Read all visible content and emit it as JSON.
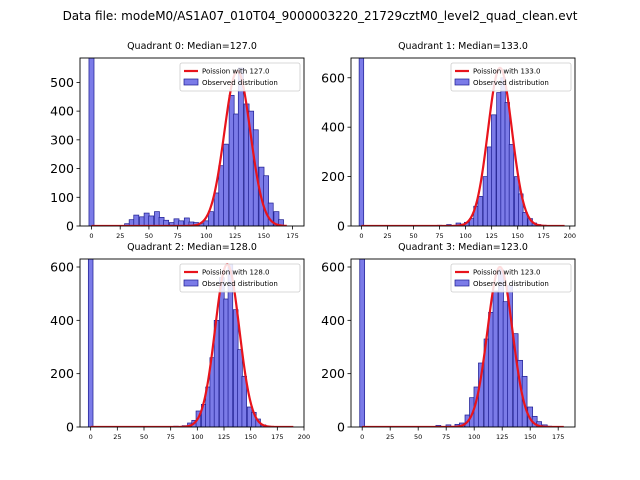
{
  "suptitle": "Data file: modeM0/AS1A07_010T04_9000003220_21729cztM0_level2_quad_clean.evt",
  "colors": {
    "bar_fill": "#7b7be8",
    "bar_edge": "#1c1c90",
    "poisson_line": "#e8141c"
  },
  "chart_data": [
    {
      "type": "bar",
      "title": "Quadrant 0: Median=127.0",
      "xlim": [
        -10,
        185
      ],
      "ylim": [
        0,
        585
      ],
      "xticks": [
        0,
        25,
        50,
        75,
        100,
        125,
        150,
        175
      ],
      "yticks": [
        0,
        100,
        200,
        300,
        400,
        500
      ],
      "bin_width": 4.4,
      "spike": {
        "x": 0,
        "width": 4.4,
        "value": 585
      },
      "bins": [
        {
          "x": 31,
          "v": 8
        },
        {
          "x": 35,
          "v": 22
        },
        {
          "x": 39,
          "v": 38
        },
        {
          "x": 44,
          "v": 32
        },
        {
          "x": 48,
          "v": 45
        },
        {
          "x": 52,
          "v": 35
        },
        {
          "x": 57,
          "v": 50
        },
        {
          "x": 61,
          "v": 30
        },
        {
          "x": 65,
          "v": 20
        },
        {
          "x": 70,
          "v": 12
        },
        {
          "x": 74,
          "v": 25
        },
        {
          "x": 78,
          "v": 18
        },
        {
          "x": 83,
          "v": 28
        },
        {
          "x": 87,
          "v": 14
        },
        {
          "x": 91,
          "v": 12
        },
        {
          "x": 96,
          "v": 8
        },
        {
          "x": 100,
          "v": 18
        },
        {
          "x": 104,
          "v": 50
        },
        {
          "x": 109,
          "v": 115
        },
        {
          "x": 113,
          "v": 210
        },
        {
          "x": 117,
          "v": 285
        },
        {
          "x": 122,
          "v": 455
        },
        {
          "x": 126,
          "v": 390
        },
        {
          "x": 130,
          "v": 550
        },
        {
          "x": 135,
          "v": 425
        },
        {
          "x": 139,
          "v": 400
        },
        {
          "x": 143,
          "v": 335
        },
        {
          "x": 148,
          "v": 205
        },
        {
          "x": 152,
          "v": 175
        },
        {
          "x": 156,
          "v": 80
        },
        {
          "x": 161,
          "v": 50
        },
        {
          "x": 165,
          "v": 22
        }
      ],
      "poisson_mean": 127.0,
      "poisson_peak": 540,
      "poisson_sigma": 11.3,
      "poisson_xrange": [
        0,
        170
      ],
      "legend": [
        "Poission with 127.0",
        "Observed distribution"
      ]
    },
    {
      "type": "bar",
      "title": "Quadrant 1: Median=133.0",
      "xlim": [
        -10,
        205
      ],
      "ylim": [
        0,
        680
      ],
      "xticks": [
        0,
        25,
        50,
        75,
        100,
        125,
        150,
        175,
        200
      ],
      "yticks": [
        0,
        200,
        400,
        600
      ],
      "bin_width": 4.4,
      "spike": {
        "x": 0,
        "width": 4.4,
        "value": 680
      },
      "bins": [
        {
          "x": 65,
          "v": 2
        },
        {
          "x": 75,
          "v": 3
        },
        {
          "x": 84,
          "v": 6
        },
        {
          "x": 93,
          "v": 12
        },
        {
          "x": 97,
          "v": 8
        },
        {
          "x": 101,
          "v": 15
        },
        {
          "x": 106,
          "v": 30
        },
        {
          "x": 110,
          "v": 80
        },
        {
          "x": 114,
          "v": 120
        },
        {
          "x": 119,
          "v": 200
        },
        {
          "x": 123,
          "v": 320
        },
        {
          "x": 127,
          "v": 450
        },
        {
          "x": 132,
          "v": 540
        },
        {
          "x": 136,
          "v": 600
        },
        {
          "x": 140,
          "v": 500
        },
        {
          "x": 144,
          "v": 330
        },
        {
          "x": 149,
          "v": 200
        },
        {
          "x": 153,
          "v": 130
        },
        {
          "x": 157,
          "v": 55
        },
        {
          "x": 162,
          "v": 30
        },
        {
          "x": 166,
          "v": 12
        },
        {
          "x": 170,
          "v": 6
        },
        {
          "x": 175,
          "v": 3
        }
      ],
      "poisson_mean": 133.0,
      "poisson_peak": 640,
      "poisson_sigma": 11.5,
      "poisson_xrange": [
        0,
        195
      ],
      "legend": [
        "Poission with 133.0",
        "Observed distribution"
      ]
    },
    {
      "type": "bar",
      "title": "Quadrant 2: Median=128.0",
      "xlim": [
        -10,
        200
      ],
      "ylim": [
        0,
        630
      ],
      "xticks": [
        0,
        25,
        50,
        75,
        100,
        125,
        150,
        175,
        200
      ],
      "yticks": [
        0,
        200,
        400,
        600
      ],
      "bin_width": 4.4,
      "spike": {
        "x": 0,
        "width": 4.4,
        "value": 630
      },
      "bins": [
        {
          "x": 66,
          "v": 2
        },
        {
          "x": 80,
          "v": 3
        },
        {
          "x": 88,
          "v": 5
        },
        {
          "x": 93,
          "v": 15
        },
        {
          "x": 97,
          "v": 25
        },
        {
          "x": 101,
          "v": 60
        },
        {
          "x": 106,
          "v": 85
        },
        {
          "x": 110,
          "v": 150
        },
        {
          "x": 114,
          "v": 260
        },
        {
          "x": 118,
          "v": 400
        },
        {
          "x": 123,
          "v": 560
        },
        {
          "x": 127,
          "v": 480
        },
        {
          "x": 131,
          "v": 610
        },
        {
          "x": 136,
          "v": 440
        },
        {
          "x": 140,
          "v": 290
        },
        {
          "x": 144,
          "v": 190
        },
        {
          "x": 149,
          "v": 75
        },
        {
          "x": 153,
          "v": 55
        },
        {
          "x": 157,
          "v": 30
        },
        {
          "x": 162,
          "v": 8
        },
        {
          "x": 166,
          "v": 3
        }
      ],
      "poisson_mean": 128.0,
      "poisson_peak": 610,
      "poisson_sigma": 11.3,
      "poisson_xrange": [
        0,
        190
      ],
      "legend": [
        "Poission with 128.0",
        "Observed distribution"
      ]
    },
    {
      "type": "bar",
      "title": "Quadrant 3: Median=123.0",
      "xlim": [
        -10,
        190
      ],
      "ylim": [
        0,
        630
      ],
      "xticks": [
        0,
        25,
        50,
        75,
        100,
        125,
        150,
        175
      ],
      "yticks": [
        0,
        200,
        400,
        600
      ],
      "bin_width": 4.4,
      "spike": {
        "x": 0,
        "width": 4.4,
        "value": 630
      },
      "bins": [
        {
          "x": 68,
          "v": 6
        },
        {
          "x": 77,
          "v": 8
        },
        {
          "x": 85,
          "v": 10
        },
        {
          "x": 89,
          "v": 15
        },
        {
          "x": 94,
          "v": 45
        },
        {
          "x": 98,
          "v": 110
        },
        {
          "x": 102,
          "v": 150
        },
        {
          "x": 106,
          "v": 240
        },
        {
          "x": 111,
          "v": 330
        },
        {
          "x": 115,
          "v": 430
        },
        {
          "x": 119,
          "v": 510
        },
        {
          "x": 124,
          "v": 590
        },
        {
          "x": 128,
          "v": 470
        },
        {
          "x": 132,
          "v": 530
        },
        {
          "x": 137,
          "v": 350
        },
        {
          "x": 141,
          "v": 250
        },
        {
          "x": 145,
          "v": 190
        },
        {
          "x": 150,
          "v": 75
        },
        {
          "x": 154,
          "v": 40
        },
        {
          "x": 158,
          "v": 20
        },
        {
          "x": 163,
          "v": 8
        },
        {
          "x": 167,
          "v": 3
        }
      ],
      "poisson_mean": 123.0,
      "poisson_peak": 600,
      "poisson_sigma": 11.1,
      "poisson_xrange": [
        0,
        180
      ],
      "legend": [
        "Poission with 123.0",
        "Observed distribution"
      ]
    }
  ]
}
